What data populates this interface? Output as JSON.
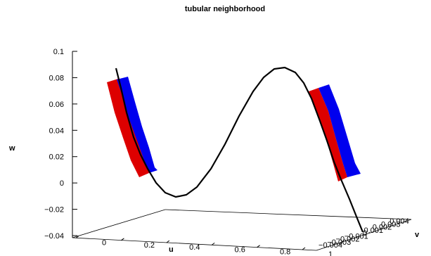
{
  "chart_data": {
    "type": "line",
    "title": "tubular neighborhood",
    "xlabel": "u",
    "ylabel": "v",
    "zlabel": "w",
    "w_ticks": [
      "0.1",
      "0.08",
      "0.06",
      "0.04",
      "0.02",
      "0",
      "−0.02",
      "−0.04"
    ],
    "u_ticks": [
      "0",
      "0.2",
      "0.4",
      "0.6",
      "0.8",
      "1"
    ],
    "v_ticks": [
      "−0.004",
      "−0.003",
      "−0.002",
      "−0.001",
      "0",
      "0.001",
      "0.002",
      "0.003",
      "0.004"
    ],
    "wlim": [
      -0.04,
      0.1
    ],
    "ulim": [
      0,
      1
    ],
    "vlim": [
      -0.004,
      0.004
    ],
    "series": [
      {
        "kind": "curve",
        "color": "#000000"
      },
      {
        "kind": "band",
        "color": "#dd0000"
      },
      {
        "kind": "band",
        "color": "#0000ee"
      }
    ]
  },
  "colors": {
    "curve": "#000000",
    "band_red": "#dd0000",
    "band_blue": "#0000ee"
  }
}
